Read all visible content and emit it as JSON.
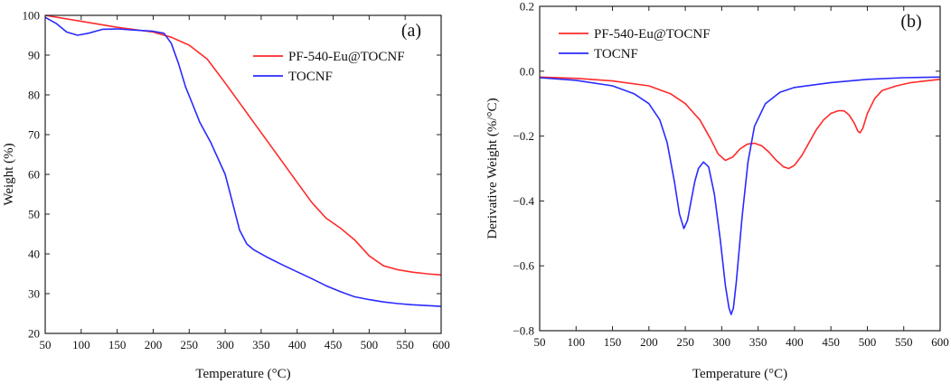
{
  "chart_data": [
    {
      "type": "line",
      "panel_label": "(a)",
      "xlabel": "Temperature (°C)",
      "ylabel": "Weight (%)",
      "xlim": [
        50,
        600
      ],
      "ylim": [
        20,
        100
      ],
      "x_ticks": [
        50,
        100,
        150,
        200,
        250,
        300,
        350,
        400,
        450,
        500,
        550,
        600
      ],
      "y_ticks": [
        20,
        30,
        40,
        50,
        60,
        70,
        80,
        90,
        100
      ],
      "grid": false,
      "legend_position": "top-right",
      "series": [
        {
          "name": "PF-540-Eu@TOCNF",
          "color": "#ff2a2a",
          "points": [
            [
              50,
              100
            ],
            [
              100,
              98.5
            ],
            [
              150,
              97
            ],
            [
              200,
              95.8
            ],
            [
              225,
              94.5
            ],
            [
              250,
              92.5
            ],
            [
              275,
              89
            ],
            [
              300,
              83
            ],
            [
              320,
              78
            ],
            [
              340,
              73
            ],
            [
              360,
              68
            ],
            [
              380,
              63
            ],
            [
              400,
              58
            ],
            [
              420,
              53
            ],
            [
              440,
              49
            ],
            [
              460,
              46.5
            ],
            [
              480,
              43.5
            ],
            [
              500,
              39.5
            ],
            [
              520,
              37
            ],
            [
              540,
              36
            ],
            [
              560,
              35.4
            ],
            [
              580,
              35
            ],
            [
              600,
              34.7
            ]
          ]
        },
        {
          "name": "TOCNF",
          "color": "#2a2aff",
          "points": [
            [
              50,
              99.5
            ],
            [
              65,
              98
            ],
            [
              80,
              95.8
            ],
            [
              95,
              95
            ],
            [
              110,
              95.5
            ],
            [
              130,
              96.5
            ],
            [
              150,
              96.6
            ],
            [
              175,
              96.3
            ],
            [
              200,
              96
            ],
            [
              215,
              95.5
            ],
            [
              225,
              93
            ],
            [
              235,
              88
            ],
            [
              245,
              82
            ],
            [
              255,
              77.5
            ],
            [
              265,
              73
            ],
            [
              280,
              68
            ],
            [
              300,
              60
            ],
            [
              310,
              53
            ],
            [
              320,
              46
            ],
            [
              330,
              42.5
            ],
            [
              340,
              41
            ],
            [
              360,
              39
            ],
            [
              380,
              37.2
            ],
            [
              400,
              35.5
            ],
            [
              420,
              33.8
            ],
            [
              440,
              32
            ],
            [
              460,
              30.5
            ],
            [
              480,
              29.2
            ],
            [
              500,
              28.5
            ],
            [
              520,
              27.9
            ],
            [
              540,
              27.5
            ],
            [
              560,
              27.2
            ],
            [
              580,
              27
            ],
            [
              600,
              26.8
            ]
          ]
        }
      ]
    },
    {
      "type": "line",
      "panel_label": "(b)",
      "xlabel": "Temperature (°C)",
      "ylabel": "Derivative Weight (%/°C)",
      "xlim": [
        50,
        600
      ],
      "ylim": [
        -0.8,
        0.2
      ],
      "x_ticks": [
        50,
        100,
        150,
        200,
        250,
        300,
        350,
        400,
        450,
        500,
        550,
        600
      ],
      "y_ticks": [
        -0.8,
        -0.6,
        -0.4,
        -0.2,
        0.0,
        0.2
      ],
      "y_tick_labels": [
        "−0.8",
        "−0.6",
        "−0.4",
        "−0.2",
        "0.0",
        "0.2"
      ],
      "grid": false,
      "legend_position": "top-left",
      "series": [
        {
          "name": "PF-540-Eu@TOCNF",
          "color": "#ff2a2a",
          "points": [
            [
              50,
              -0.018
            ],
            [
              100,
              -0.022
            ],
            [
              150,
              -0.03
            ],
            [
              200,
              -0.045
            ],
            [
              230,
              -0.07
            ],
            [
              250,
              -0.1
            ],
            [
              270,
              -0.15
            ],
            [
              285,
              -0.21
            ],
            [
              295,
              -0.255
            ],
            [
              305,
              -0.275
            ],
            [
              315,
              -0.265
            ],
            [
              325,
              -0.24
            ],
            [
              335,
              -0.225
            ],
            [
              345,
              -0.222
            ],
            [
              355,
              -0.23
            ],
            [
              365,
              -0.25
            ],
            [
              375,
              -0.275
            ],
            [
              385,
              -0.295
            ],
            [
              392,
              -0.3
            ],
            [
              400,
              -0.29
            ],
            [
              410,
              -0.26
            ],
            [
              420,
              -0.22
            ],
            [
              430,
              -0.18
            ],
            [
              440,
              -0.15
            ],
            [
              450,
              -0.13
            ],
            [
              460,
              -0.122
            ],
            [
              468,
              -0.122
            ],
            [
              475,
              -0.135
            ],
            [
              482,
              -0.16
            ],
            [
              487,
              -0.185
            ],
            [
              490,
              -0.19
            ],
            [
              494,
              -0.175
            ],
            [
              500,
              -0.13
            ],
            [
              510,
              -0.085
            ],
            [
              520,
              -0.06
            ],
            [
              540,
              -0.045
            ],
            [
              560,
              -0.035
            ],
            [
              580,
              -0.03
            ],
            [
              600,
              -0.025
            ]
          ]
        },
        {
          "name": "TOCNF",
          "color": "#2a2aff",
          "points": [
            [
              50,
              -0.02
            ],
            [
              100,
              -0.028
            ],
            [
              150,
              -0.045
            ],
            [
              180,
              -0.07
            ],
            [
              200,
              -0.1
            ],
            [
              215,
              -0.15
            ],
            [
              225,
              -0.22
            ],
            [
              235,
              -0.34
            ],
            [
              242,
              -0.44
            ],
            [
              248,
              -0.485
            ],
            [
              253,
              -0.46
            ],
            [
              258,
              -0.4
            ],
            [
              263,
              -0.34
            ],
            [
              268,
              -0.3
            ],
            [
              275,
              -0.28
            ],
            [
              282,
              -0.295
            ],
            [
              290,
              -0.38
            ],
            [
              298,
              -0.52
            ],
            [
              305,
              -0.66
            ],
            [
              310,
              -0.73
            ],
            [
              313,
              -0.75
            ],
            [
              316,
              -0.73
            ],
            [
              320,
              -0.65
            ],
            [
              328,
              -0.45
            ],
            [
              336,
              -0.28
            ],
            [
              345,
              -0.17
            ],
            [
              360,
              -0.1
            ],
            [
              380,
              -0.065
            ],
            [
              400,
              -0.05
            ],
            [
              450,
              -0.035
            ],
            [
              500,
              -0.025
            ],
            [
              550,
              -0.02
            ],
            [
              600,
              -0.018
            ]
          ]
        }
      ]
    }
  ]
}
